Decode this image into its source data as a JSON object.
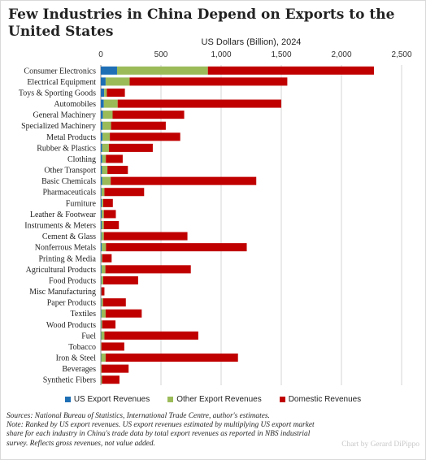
{
  "title": "Few Industries in China Depend on Exports to the United States",
  "chart_data": {
    "type": "bar",
    "orientation": "horizontal",
    "stacked": true,
    "title": "Few Industries in China Depend on Exports to the United States",
    "xlabel": "US Dollars (Billion), 2024",
    "ylabel": "",
    "xlim": [
      0,
      2500
    ],
    "xticks": [
      0,
      500,
      1000,
      1500,
      2000,
      2500
    ],
    "xtick_labels": [
      "0",
      "500",
      "1,000",
      "1,500",
      "2,000",
      "2,500"
    ],
    "grid": true,
    "legend_position": "bottom",
    "categories": [
      "Consumer Electronics",
      "Electrical Equipment",
      "Toys & Sporting Goods",
      "Automobiles",
      "General Machinery",
      "Specialized Machinery",
      "Metal Products",
      "Rubber & Plastics",
      "Clothing",
      "Other Transport",
      "Basic Chemicals",
      "Pharmaceuticals",
      "Furniture",
      "Leather & Footwear",
      "Instruments & Meters",
      "Cement & Glass",
      "Nonferrous Metals",
      "Printing & Media",
      "Agricultural Products",
      "Food Products",
      "Misc Manufacturing",
      "Paper Products",
      "Textiles",
      "Wood Products",
      "Fuel",
      "Tobacco",
      "Iron & Steel",
      "Beverages",
      "Synthetic Fibers"
    ],
    "series": [
      {
        "name": "US Export Revenues",
        "color": "#1f6fb5",
        "values": [
          135,
          40,
          28,
          25,
          18,
          15,
          15,
          12,
          12,
          10,
          12,
          6,
          8,
          7,
          7,
          5,
          8,
          4,
          6,
          4,
          3,
          4,
          5,
          3,
          3,
          1,
          3,
          1,
          2
        ]
      },
      {
        "name": "Other Export Revenues",
        "color": "#9bbb59",
        "values": [
          755,
          200,
          22,
          115,
          80,
          70,
          60,
          55,
          30,
          45,
          70,
          24,
          12,
          18,
          18,
          20,
          35,
          8,
          32,
          16,
          2,
          14,
          35,
          9,
          27,
          4,
          37,
          5,
          8
        ]
      },
      {
        "name": "Domestic Revenues",
        "color": "#c00000",
        "values": [
          1380,
          1310,
          150,
          1360,
          595,
          455,
          585,
          365,
          140,
          170,
          1210,
          330,
          80,
          100,
          125,
          695,
          1170,
          78,
          710,
          290,
          25,
          190,
          300,
          110,
          780,
          190,
          1100,
          225,
          145
        ]
      }
    ]
  },
  "legend": {
    "items": [
      {
        "label": "US Export Revenues",
        "color": "#1f6fb5"
      },
      {
        "label": "Other Export Revenues",
        "color": "#9bbb59"
      },
      {
        "label": "Domestic Revenues",
        "color": "#c00000"
      }
    ]
  },
  "notes": {
    "sources": "Sources: National Bureau of Statistics, International Trade Centre, author's estimates.",
    "note": "Note: Ranked by US export revenues. US export revenues estimated by multiplying US export market share for each industry in China's trade data by total export revenues as reported in NBS industrial survey. Reflects gross revenues, not value added."
  },
  "credit": "Chart by Gerard DiPippo"
}
